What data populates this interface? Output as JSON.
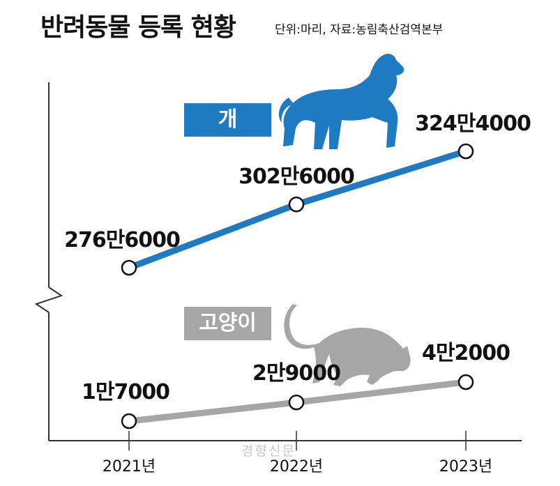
{
  "title": "반려동물 등록 현황",
  "subtitle": "단위:마리, 자료:농림축산검역본부",
  "watermark": "경향신문",
  "colors": {
    "dog": "#1e7bc2",
    "cat": "#a6a6a6",
    "axis": "#333333"
  },
  "icons": {
    "dog": "dog-silhouette-icon",
    "cat": "cat-silhouette-icon"
  },
  "chart_data": {
    "type": "line",
    "title": "반려동물 등록 현황",
    "subtitle": "단위:마리, 자료:농림축산검역본부",
    "categories": [
      "2021년",
      "2022년",
      "2023년"
    ],
    "xlabel": "",
    "ylabel": "",
    "axis_break": true,
    "grid": false,
    "series": [
      {
        "name": "개",
        "values": [
          2766000,
          3026000,
          3244000
        ],
        "labels": [
          "276만6000",
          "302만6000",
          "324만4000"
        ]
      },
      {
        "name": "고양이",
        "values": [
          17000,
          29000,
          42000
        ],
        "labels": [
          "1만7000",
          "2만9000",
          "4만2000"
        ]
      }
    ]
  }
}
